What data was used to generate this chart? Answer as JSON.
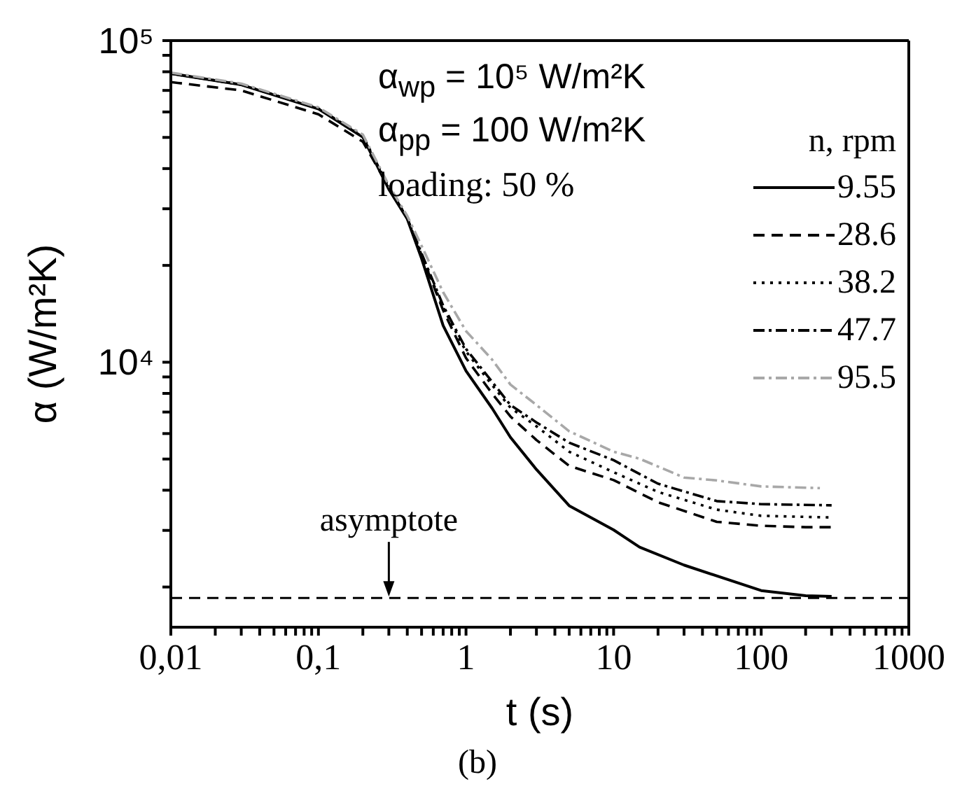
{
  "chart_data": {
    "type": "line",
    "xlabel": "t (s)",
    "ylabel": "α (W/m²K)",
    "legend_title": "n, rpm",
    "legend": "top right",
    "log": "xy",
    "marker": "none",
    "xlim": [
      0.01,
      1000
    ],
    "xticks": [
      {
        "value": 0.01,
        "label": "0,01"
      },
      {
        "value": 0.02,
        "label": null
      },
      {
        "value": 0.03,
        "label": null
      },
      {
        "value": 0.04,
        "label": null
      },
      {
        "value": 0.05,
        "label": null
      },
      {
        "value": 0.06,
        "label": null
      },
      {
        "value": 0.07,
        "label": null
      },
      {
        "value": 0.08,
        "label": null
      },
      {
        "value": 0.09,
        "label": null
      },
      {
        "value": 0.1,
        "label": "0,1"
      },
      {
        "value": 0.2,
        "label": null
      },
      {
        "value": 0.3,
        "label": null
      },
      {
        "value": 0.4,
        "label": null
      },
      {
        "value": 0.5,
        "label": null
      },
      {
        "value": 0.6,
        "label": null
      },
      {
        "value": 0.7,
        "label": null
      },
      {
        "value": 0.8,
        "label": null
      },
      {
        "value": 0.9,
        "label": null
      },
      1,
      {
        "value": 2,
        "label": null
      },
      {
        "value": 3,
        "label": null
      },
      {
        "value": 4,
        "label": null
      },
      {
        "value": 5,
        "label": null
      },
      {
        "value": 6,
        "label": null
      },
      {
        "value": 7,
        "label": null
      },
      {
        "value": 8,
        "label": null
      },
      {
        "value": 9,
        "label": null
      },
      10,
      {
        "value": 20,
        "label": null
      },
      {
        "value": 30,
        "label": null
      },
      {
        "value": 40,
        "label": null
      },
      {
        "value": 50,
        "label": null
      },
      {
        "value": 60,
        "label": null
      },
      {
        "value": 70,
        "label": null
      },
      {
        "value": 80,
        "label": null
      },
      {
        "value": 90,
        "label": null
      },
      100,
      {
        "value": 200,
        "label": null
      },
      {
        "value": 300,
        "label": null
      },
      {
        "value": 400,
        "label": null
      },
      {
        "value": 500,
        "label": null
      },
      {
        "value": 600,
        "label": null
      },
      {
        "value": 700,
        "label": null
      },
      {
        "value": 800,
        "label": null
      },
      {
        "value": 900,
        "label": null
      },
      1000
    ],
    "ylim": [
      1500,
      100000
    ],
    "yticks": [
      {
        "value": 2000,
        "label": null
      },
      {
        "value": 3000,
        "label": null
      },
      {
        "value": 4000,
        "label": null
      },
      {
        "value": 5000,
        "label": null
      },
      {
        "value": 6000,
        "label": null
      },
      {
        "value": 7000,
        "label": null
      },
      {
        "value": 8000,
        "label": null
      },
      {
        "value": 9000,
        "label": null
      },
      {
        "value": 10000,
        "label": "10⁴"
      },
      {
        "value": 20000,
        "label": null
      },
      {
        "value": 30000,
        "label": null
      },
      {
        "value": 40000,
        "label": null
      },
      {
        "value": 50000,
        "label": null
      },
      {
        "value": 60000,
        "label": null
      },
      {
        "value": 70000,
        "label": null
      },
      {
        "value": 80000,
        "label": null
      },
      {
        "value": 90000,
        "label": null
      },
      {
        "value": 100000,
        "label": "10⁵"
      }
    ],
    "series": [
      {
        "name": "9.55",
        "color": "#000000",
        "line_style": "solid",
        "x": [
          0.01,
          0.03,
          0.1,
          0.2,
          0.3,
          0.4,
          0.5,
          0.7,
          1,
          1.5,
          2,
          3,
          5,
          10,
          15,
          30,
          100,
          200,
          300
        ],
        "values": [
          79000,
          72900,
          61300,
          50100,
          34500,
          27900,
          21000,
          13000,
          9400,
          7200,
          5840,
          4640,
          3580,
          3010,
          2660,
          2340,
          1950,
          1880,
          1870
        ]
      },
      {
        "name": "28.6",
        "color": "#000000",
        "line_style": "dashed",
        "x": [
          0.01,
          0.03,
          0.1,
          0.2,
          0.3,
          0.4,
          0.5,
          0.7,
          1,
          1.5,
          2,
          3,
          5,
          10,
          20,
          50,
          100,
          200,
          300
        ],
        "values": [
          74300,
          70000,
          59000,
          48500,
          35000,
          28000,
          21500,
          14500,
          10300,
          8000,
          6780,
          5730,
          4760,
          4300,
          3670,
          3190,
          3100,
          3070,
          3070
        ]
      },
      {
        "name": "38.2",
        "color": "#000000",
        "line_style": "dotted",
        "x": [
          0.01,
          0.03,
          0.1,
          0.2,
          0.3,
          0.4,
          0.5,
          0.7,
          1,
          1.5,
          2,
          3,
          5,
          10,
          20,
          50,
          100,
          300
        ],
        "values": [
          79000,
          73000,
          61500,
          50500,
          35000,
          28000,
          21500,
          14800,
          10800,
          8500,
          7220,
          6320,
          5270,
          4550,
          3950,
          3480,
          3330,
          3290
        ]
      },
      {
        "name": "47.7",
        "color": "#000000",
        "line_style": "dashdot",
        "x": [
          0.01,
          0.03,
          0.1,
          0.2,
          0.3,
          0.4,
          0.5,
          0.7,
          1,
          1.5,
          2,
          3,
          5,
          10,
          20,
          50,
          100,
          300
        ],
        "values": [
          79000,
          73000,
          61500,
          50500,
          35000,
          28000,
          21800,
          15000,
          11000,
          8700,
          7360,
          6500,
          5620,
          4960,
          4190,
          3700,
          3620,
          3590
        ]
      },
      {
        "name": "95.5",
        "color": "#a8a8a8",
        "line_style": "dashdot",
        "x": [
          0.01,
          0.03,
          0.1,
          0.2,
          0.3,
          0.4,
          0.5,
          0.7,
          1,
          1.5,
          2,
          3,
          5,
          10,
          15,
          30,
          50,
          100,
          250
        ],
        "values": [
          79500,
          73500,
          62000,
          51000,
          35500,
          28500,
          23000,
          16500,
          12500,
          10200,
          8520,
          7360,
          6100,
          5270,
          5010,
          4380,
          4290,
          4110,
          4060
        ]
      }
    ],
    "ref_lines": [
      {
        "axis": "y",
        "value": 1850,
        "line_style": "dashed",
        "color": "#000000"
      }
    ],
    "annotations": [
      "α$_{wp}$ = 10⁵ W/m²K",
      "α$_{pp}$ = 100 W/m²K",
      "loading: 50 %",
      {
        "text": "asymptote",
        "x": 0.3,
        "y": 1850
      },
      "(b)"
    ]
  }
}
